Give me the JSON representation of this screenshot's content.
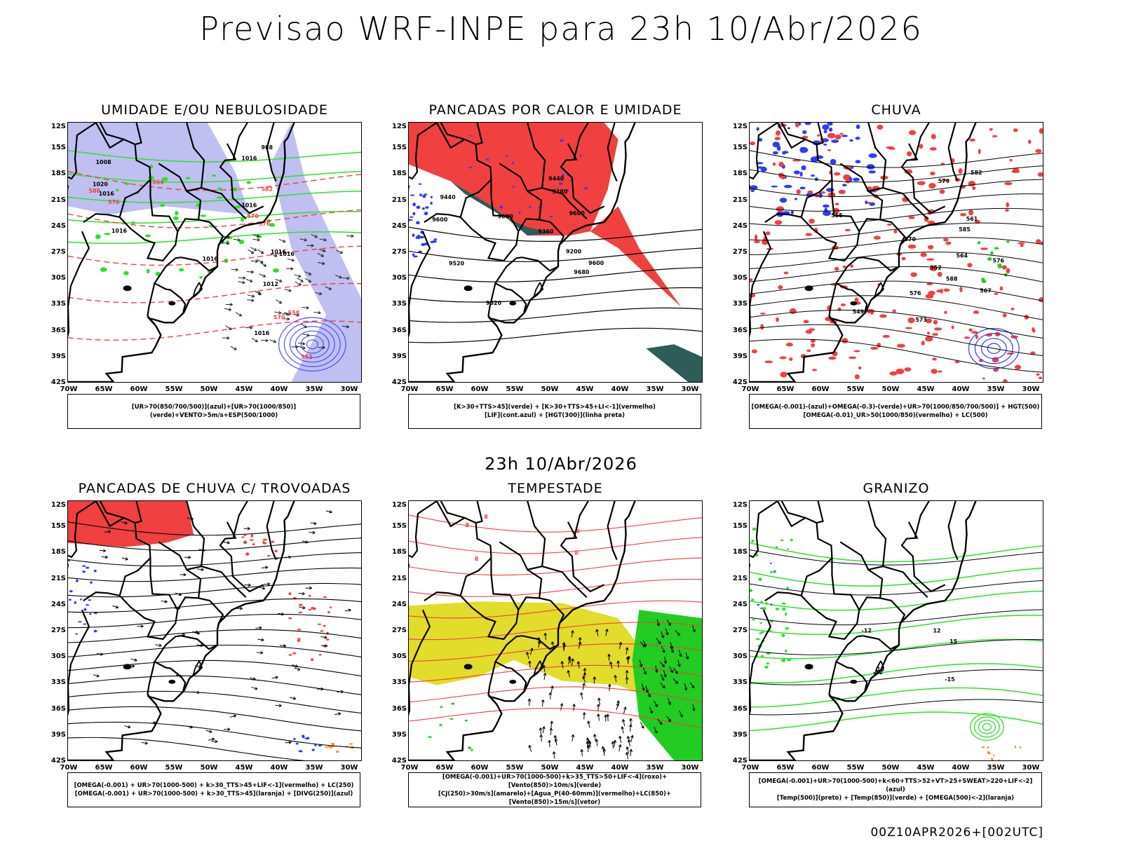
{
  "title": "Previsao WRF-INPE  para 23h 10/Abr/2026",
  "subtitle": "23h 10/Abr/2026",
  "footer": "00Z10APR2026+[002UTC]",
  "axes": {
    "lat": [
      "12S",
      "15S",
      "18S",
      "21S",
      "24S",
      "27S",
      "30S",
      "33S",
      "36S",
      "39S",
      "42S"
    ],
    "lon": [
      "70W",
      "65W",
      "60W",
      "55W",
      "50W",
      "45W",
      "40W",
      "35W",
      "30W"
    ]
  },
  "panels": [
    {
      "id": "umidade",
      "title": "UMIDADE E/OU NEBULOSIDADE",
      "legend": [
        "[UR>70(850/700/500)](azul)+[UR>70(1000/850)](verde)+VENTO>5m/s+ESP(500/1000)"
      ]
    },
    {
      "id": "pancadas-calor",
      "title": "PANCADAS POR CALOR E UMIDADE",
      "legend": [
        "[K>30+TTS>45](verde) + [K>30+TTS>45+LI<-1](vermelho)",
        "[LIF](cont.azul) + [HGT(300)](linha preta)"
      ]
    },
    {
      "id": "chuva",
      "title": "CHUVA",
      "legend": [
        "[OMEGA(-0.001)-(azul)+OMEGA(-0.3)-(verde)+UR>70(1000/850/700/500)] + HGT(500)",
        "[OMEGA(-0.01)_UR>50(1000/850)(vermelho) + LC(500)"
      ]
    },
    {
      "id": "pancadas-trovoadas",
      "title": "PANCADAS DE CHUVA C/ TROVOADAS",
      "legend": [
        "[OMEGA(-0.001) + UR>70(1000-500) + k>30_TTS>45+LIF<-1](vermelho) + LC(250)",
        "[OMEGA(-0.001) + UR>70(1000-500) + k>30_TTS>45](laranja) + [DIVG(250)](azul)"
      ]
    },
    {
      "id": "tempestade",
      "title": "TEMPESTADE",
      "legend": [
        "[OMEGA(-0.001)+UR>70(1000-500)+k>35_TTS>50+LIF<-4](roxo)+[Vento(850)>10m/s](verde)",
        "[CJ(250)>30m/s](amarelo)+[Agua_P(40-60mm)](vermelho)+LC(850)+[Vento(850)>15m/s](vetor)"
      ]
    },
    {
      "id": "granizo",
      "title": "GRANIZO",
      "legend": [
        "[OMEGA(-0.001)+UR>70(1000-500)+k<60+TTS>52+VT>25+SWEAT>220+LIF<-2](azul)",
        "[Temp(500)](preto) + [Temp(850)](verde) + [OMEGA(500)<-2](laranja)"
      ]
    }
  ],
  "contour_labels": {
    "umidade": [
      "1016",
      "1016",
      "1016",
      "1016",
      "1016",
      "1020",
      "1016",
      "1012",
      "1016",
      "1016",
      "1008",
      "988",
      "576",
      "570",
      "588",
      "582",
      "564",
      "552",
      "558",
      "576",
      "570"
    ],
    "pancadas-calor": [
      "9680",
      "9680",
      "9600",
      "9600",
      "9600",
      "9520",
      "9520",
      "9440",
      "9440",
      "9360",
      "9280",
      "9200"
    ],
    "chuva": [
      "585",
      "582",
      "588",
      "579",
      "576",
      "576",
      "573",
      "570",
      "567",
      "564",
      "561",
      "555",
      "552",
      "549"
    ],
    "tempestade": [
      "8",
      "8",
      "8",
      "8",
      "8"
    ],
    "granizo": [
      "-15",
      "-12",
      "-12",
      "15",
      "12",
      "13"
    ]
  },
  "colors": {
    "red": "#f04040",
    "green": "#22cc22",
    "blue": "#2b3bff",
    "teal": "#2e5c58",
    "yellow": "#e2dc2a",
    "lavender": "#b8b8f0",
    "orange": "#ff8a1c",
    "line_green": "#2ee02e"
  }
}
